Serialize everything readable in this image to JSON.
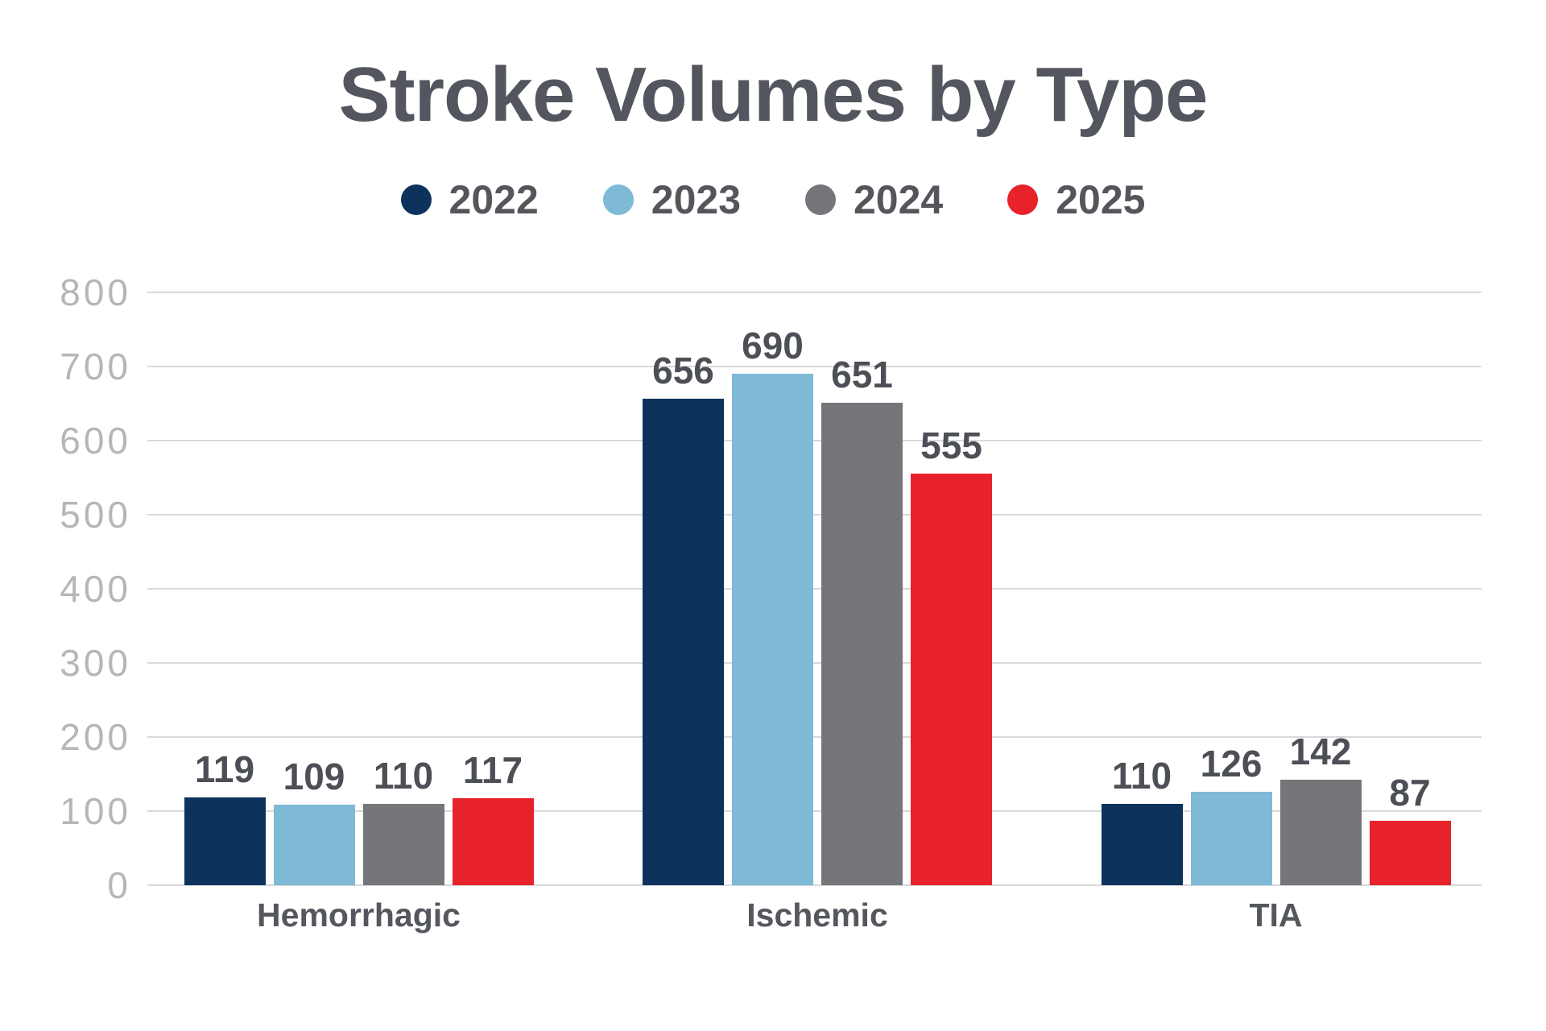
{
  "title": "Stroke Volumes by Type",
  "chart_data": {
    "type": "bar",
    "title": "Stroke Volumes by Type",
    "categories": [
      "Hemorrhagic",
      "Ischemic",
      "TIA"
    ],
    "series": [
      {
        "name": "2022",
        "color": "#0d335c",
        "values": [
          119,
          656,
          110
        ]
      },
      {
        "name": "2023",
        "color": "#7eb9d6",
        "values": [
          109,
          690,
          126
        ]
      },
      {
        "name": "2024",
        "color": "#767579",
        "values": [
          110,
          651,
          142
        ]
      },
      {
        "name": "2025",
        "color": "#e8222b",
        "values": [
          117,
          555,
          87
        ]
      }
    ],
    "ylim": [
      0,
      800
    ],
    "yticks": [
      0,
      100,
      200,
      300,
      400,
      500,
      600,
      700,
      800
    ],
    "grid": true,
    "legend_position": "top",
    "bar_value_labels": true,
    "xlabel": "",
    "ylabel": ""
  },
  "colors": {
    "background": "#ffffff",
    "title_text": "#53565e",
    "value_label_text": "#4c4f55",
    "category_label_text": "#54575d",
    "ytick_text": "#b5b6b8",
    "gridline": "#d9d9db"
  }
}
